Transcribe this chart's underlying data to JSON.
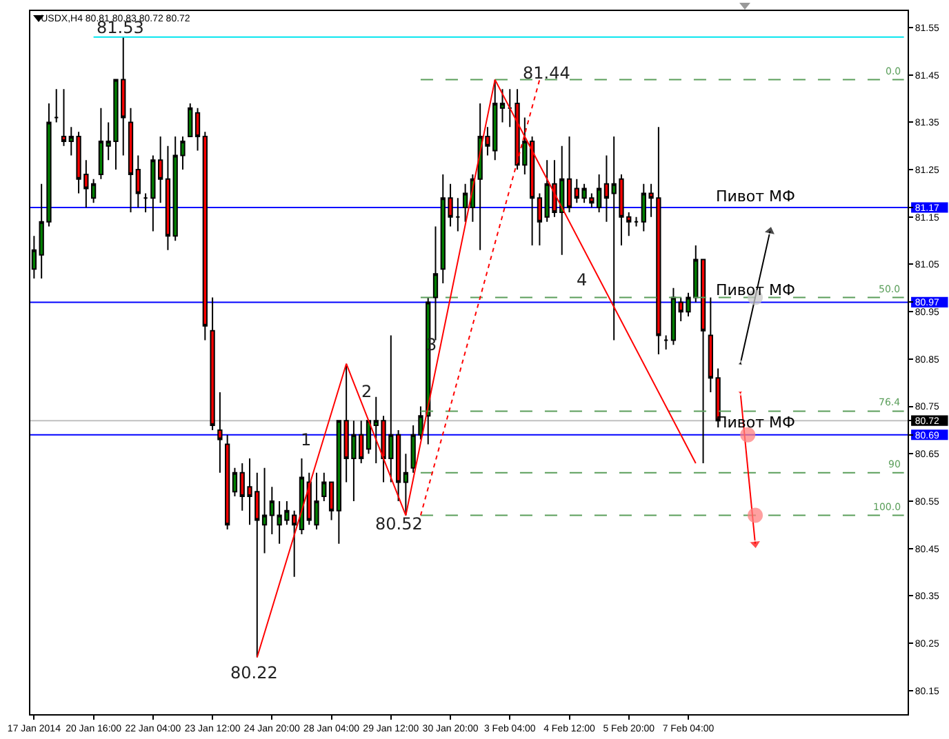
{
  "chart_data": {
    "type": "candlestick",
    "title": "USDX,H4 80.81 80.83 80.72 80.72",
    "categories": [
      "17 Jan 2014",
      null,
      null,
      null,
      null,
      null,
      null,
      null,
      "20 Jan 16:00",
      null,
      null,
      null,
      null,
      null,
      null,
      null,
      "22 Jan 04:00",
      null,
      null,
      null,
      null,
      null,
      null,
      null,
      "23 Jan 12:00",
      null,
      null,
      null,
      null,
      null,
      null,
      null,
      "24 Jan 20:00",
      null,
      null,
      null,
      null,
      null,
      null,
      null,
      "28 Jan 04:00",
      null,
      null,
      null,
      null,
      null,
      null,
      null,
      "29 Jan 12:00",
      null,
      null,
      null,
      null,
      null,
      null,
      null,
      "30 Jan 20:00",
      null,
      null,
      null,
      null,
      null,
      null,
      null,
      "3 Feb 04:00",
      null,
      null,
      null,
      null,
      null,
      null,
      null,
      "4 Feb 12:00",
      null,
      null,
      null,
      null,
      null,
      null,
      null,
      "5 Feb 20:00",
      null,
      null,
      null,
      null,
      null,
      null,
      null,
      "7 Feb 04:00",
      null,
      null,
      null,
      null,
      null,
      null,
      null,
      null,
      null,
      null,
      null,
      null,
      null,
      null,
      null,
      null,
      null,
      null,
      null,
      null,
      null,
      null,
      null,
      null,
      null,
      null,
      null,
      null,
      null
    ],
    "ohlc": [
      [
        81.04,
        81.11,
        81.02,
        81.08
      ],
      [
        81.07,
        81.22,
        81.02,
        81.14
      ],
      [
        81.14,
        81.39,
        81.13,
        81.35
      ],
      [
        81.36,
        81.42,
        81.35,
        81.36
      ],
      [
        81.32,
        81.42,
        81.3,
        81.31
      ],
      [
        81.31,
        81.34,
        81.28,
        81.32
      ],
      [
        81.32,
        81.33,
        81.2,
        81.23
      ],
      [
        81.24,
        81.27,
        81.17,
        81.21
      ],
      [
        81.19,
        81.23,
        81.18,
        81.22
      ],
      [
        81.24,
        81.38,
        81.23,
        81.31
      ],
      [
        81.3,
        81.35,
        81.27,
        81.31
      ],
      [
        81.31,
        81.44,
        81.25,
        81.44
      ],
      [
        81.44,
        81.53,
        81.28,
        81.36
      ],
      [
        81.35,
        81.38,
        81.16,
        81.24
      ],
      [
        81.25,
        81.28,
        81.17,
        81.2
      ],
      [
        81.19,
        81.2,
        81.16,
        81.19
      ],
      [
        81.19,
        81.28,
        81.12,
        81.27
      ],
      [
        81.27,
        81.32,
        81.18,
        81.23
      ],
      [
        81.23,
        81.3,
        81.08,
        81.11
      ],
      [
        81.11,
        81.32,
        81.1,
        81.28
      ],
      [
        81.28,
        81.32,
        81.25,
        81.31
      ],
      [
        81.32,
        81.39,
        81.32,
        81.38
      ],
      [
        81.37,
        81.38,
        81.29,
        81.32
      ],
      [
        81.32,
        81.33,
        80.89,
        80.92
      ],
      [
        80.91,
        80.98,
        80.7,
        80.71
      ],
      [
        80.7,
        80.78,
        80.61,
        80.68
      ],
      [
        80.67,
        80.69,
        80.49,
        80.5
      ],
      [
        80.57,
        80.62,
        80.56,
        80.61
      ],
      [
        80.61,
        80.63,
        80.53,
        80.56
      ],
      [
        80.58,
        80.64,
        80.5,
        80.56
      ],
      [
        80.57,
        80.61,
        80.22,
        80.51
      ],
      [
        80.5,
        80.62,
        80.44,
        80.52
      ],
      [
        80.52,
        80.58,
        80.48,
        80.55
      ],
      [
        80.5,
        80.55,
        80.46,
        80.52
      ],
      [
        80.51,
        80.55,
        80.5,
        80.53
      ],
      [
        80.52,
        80.53,
        80.39,
        80.5
      ],
      [
        80.49,
        80.64,
        80.48,
        80.6
      ],
      [
        80.59,
        80.61,
        80.5,
        80.51
      ],
      [
        80.5,
        80.61,
        80.49,
        80.55
      ],
      [
        80.56,
        80.61,
        80.55,
        80.59
      ],
      [
        80.59,
        80.59,
        80.51,
        80.53
      ],
      [
        80.53,
        80.72,
        80.46,
        80.72
      ],
      [
        80.72,
        80.84,
        80.59,
        80.64
      ],
      [
        80.64,
        80.72,
        80.55,
        80.69
      ],
      [
        80.69,
        80.72,
        80.63,
        80.64
      ],
      [
        80.66,
        80.72,
        80.65,
        80.72
      ],
      [
        80.71,
        80.77,
        80.63,
        80.72
      ],
      [
        80.72,
        80.73,
        80.59,
        80.64
      ],
      [
        80.64,
        80.9,
        80.59,
        80.69
      ],
      [
        80.69,
        80.7,
        80.55,
        80.59
      ],
      [
        80.59,
        80.65,
        80.52,
        80.61
      ],
      [
        80.62,
        80.71,
        80.61,
        80.69
      ],
      [
        80.69,
        80.75,
        80.68,
        80.73
      ],
      [
        80.73,
        80.98,
        80.67,
        80.97
      ],
      [
        80.98,
        81.13,
        80.89,
        81.03
      ],
      [
        81.04,
        81.24,
        81.01,
        81.19
      ],
      [
        81.19,
        81.22,
        81.13,
        81.15
      ],
      [
        81.15,
        81.19,
        81.12,
        81.15
      ],
      [
        81.17,
        81.22,
        81.14,
        81.2
      ],
      [
        81.17,
        81.24,
        81.14,
        81.23
      ],
      [
        81.23,
        81.39,
        81.08,
        81.32
      ],
      [
        81.32,
        81.34,
        81.28,
        81.3
      ],
      [
        81.29,
        81.44,
        81.27,
        81.39
      ],
      [
        81.38,
        81.42,
        81.35,
        81.39
      ],
      [
        81.38,
        81.42,
        81.34,
        81.38
      ],
      [
        81.39,
        81.42,
        81.25,
        81.26
      ],
      [
        81.26,
        81.36,
        81.24,
        81.31
      ],
      [
        81.31,
        81.32,
        81.09,
        81.19
      ],
      [
        81.19,
        81.2,
        81.09,
        81.14
      ],
      [
        81.15,
        81.27,
        81.14,
        81.22
      ],
      [
        81.22,
        81.27,
        81.15,
        81.16
      ],
      [
        81.16,
        81.3,
        81.07,
        81.23
      ],
      [
        81.23,
        81.32,
        81.16,
        81.17
      ],
      [
        81.21,
        81.23,
        81.18,
        81.19
      ],
      [
        81.19,
        81.22,
        81.18,
        81.21
      ],
      [
        81.19,
        81.2,
        81.17,
        81.18
      ],
      [
        81.17,
        81.24,
        81.16,
        81.21
      ],
      [
        81.22,
        81.28,
        81.14,
        81.19
      ],
      [
        81.2,
        81.32,
        80.89,
        81.22
      ],
      [
        81.23,
        81.24,
        81.09,
        81.15
      ],
      [
        81.15,
        81.16,
        81.11,
        81.14
      ],
      [
        81.14,
        81.15,
        81.13,
        81.14
      ],
      [
        81.14,
        81.22,
        81.12,
        81.2
      ],
      [
        81.2,
        81.22,
        81.15,
        81.19
      ],
      [
        81.19,
        81.34,
        80.86,
        80.9
      ],
      [
        80.89,
        80.9,
        80.87,
        80.89
      ],
      [
        80.89,
        81.0,
        80.88,
        80.98
      ],
      [
        80.97,
        80.98,
        80.93,
        80.95
      ],
      [
        80.95,
        80.99,
        80.94,
        80.98
      ],
      [
        80.98,
        81.09,
        80.97,
        81.06
      ],
      [
        81.06,
        81.06,
        80.63,
        80.91
      ],
      [
        80.9,
        80.98,
        80.78,
        80.81
      ],
      [
        80.81,
        80.83,
        80.72,
        80.72
      ],
      null,
      null,
      null,
      null,
      null,
      null,
      null,
      null,
      null,
      null,
      null,
      null,
      null,
      null,
      null,
      null,
      null,
      null,
      null,
      null,
      null,
      null,
      null,
      null,
      null
    ],
    "colors": [
      "#008000",
      "#008000",
      "#008000",
      "#000000",
      "#ff0000",
      "#008000",
      "#ff0000",
      "#ff0000",
      "#008000",
      "#008000",
      "#008000",
      "#008000",
      "#ff0000",
      "#ff0000",
      "#ff0000",
      "#000000",
      "#008000",
      "#ff0000",
      "#ff0000",
      "#008000",
      "#008000",
      "#008000",
      "#ff0000",
      "#ff0000",
      "#ff0000",
      "#ff0000",
      "#ff0000",
      "#008000",
      "#ff0000",
      "#ff0000",
      "#ff0000",
      "#008000",
      "#008000",
      "#008000",
      "#008000",
      "#ff0000",
      "#008000",
      "#ff0000",
      "#008000",
      "#008000",
      "#ff0000",
      "#008000",
      "#ff0000",
      "#008000",
      "#ff0000",
      "#008000",
      "#008000",
      "#ff0000",
      "#008000",
      "#ff0000",
      "#008000",
      "#008000",
      "#008000",
      "#008000",
      "#008000",
      "#008000",
      "#ff0000",
      "#000000",
      "#008000",
      "#008000",
      "#008000",
      "#ff0000",
      "#008000",
      "#008000",
      "#000000",
      "#ff0000",
      "#008000",
      "#ff0000",
      "#ff0000",
      "#008000",
      "#ff0000",
      "#008000",
      "#ff0000",
      "#ff0000",
      "#008000",
      "#ff0000",
      "#008000",
      "#ff0000",
      "#008000",
      "#ff0000",
      "#ff0000",
      "#000000",
      "#008000",
      "#ff0000",
      "#ff0000",
      "#000000",
      "#008000",
      "#ff0000",
      "#008000",
      "#008000",
      "#ff0000",
      "#ff0000",
      "#ff0000",
      null,
      null,
      null,
      null,
      null,
      null,
      null,
      null,
      null,
      null,
      null,
      null,
      null,
      null,
      null,
      null,
      null,
      null,
      null,
      null,
      null,
      null,
      null,
      null,
      null
    ],
    "series": [
      {
        "type": "line",
        "color": "#00e5ee",
        "line_style": "solid",
        "values": [
          null,
          null,
          null,
          null,
          null,
          null,
          null,
          null,
          81.53,
          null,
          null,
          null,
          null,
          null,
          null,
          null,
          null,
          null,
          null,
          null,
          null,
          null,
          null,
          null,
          null,
          null,
          null,
          null,
          null,
          null,
          null,
          null,
          null,
          null,
          null,
          null,
          null,
          null,
          null,
          null,
          null,
          null,
          null,
          null,
          null,
          null,
          null,
          null,
          null,
          null,
          null,
          null,
          null,
          null,
          null,
          null,
          null,
          null,
          null,
          null,
          null,
          null,
          null,
          null,
          null,
          null,
          null,
          null,
          null,
          null,
          null,
          null,
          null,
          null,
          null,
          null,
          null,
          null,
          null,
          null,
          null,
          null,
          null,
          null,
          null,
          null,
          null,
          null,
          null,
          null,
          null,
          null,
          null,
          null,
          null,
          null,
          null,
          null,
          null,
          null,
          null,
          null,
          null,
          null,
          null,
          null,
          null,
          null,
          null,
          null,
          null,
          null,
          null,
          null,
          null,
          null,
          null,
          81.53
        ]
      },
      {
        "type": "line",
        "name": "0.0",
        "color": "#5a9e5a",
        "line_style": "dashed",
        "values": [
          null,
          null,
          null,
          null,
          null,
          null,
          null,
          null,
          null,
          null,
          null,
          null,
          null,
          null,
          null,
          null,
          null,
          null,
          null,
          null,
          null,
          null,
          null,
          null,
          null,
          null,
          null,
          null,
          null,
          null,
          null,
          null,
          null,
          null,
          null,
          null,
          null,
          null,
          null,
          null,
          null,
          null,
          null,
          null,
          null,
          null,
          null,
          null,
          null,
          null,
          null,
          null,
          81.44,
          null,
          null,
          null,
          null,
          null,
          null,
          null,
          null,
          null,
          null,
          null,
          null,
          null,
          null,
          null,
          null,
          null,
          null,
          null,
          null,
          null,
          null,
          null,
          null,
          null,
          null,
          null,
          null,
          null,
          null,
          null,
          null,
          null,
          null,
          null,
          null,
          null,
          null,
          null,
          null,
          null,
          null,
          null,
          null,
          null,
          null,
          null,
          null,
          null,
          null,
          null,
          null,
          null,
          null,
          null,
          null,
          null,
          null,
          null,
          null,
          null,
          null,
          null,
          null,
          81.44
        ]
      },
      {
        "type": "line",
        "name": "50.0",
        "color": "#5a9e5a",
        "line_style": "dashed",
        "values": [
          null,
          null,
          null,
          null,
          null,
          null,
          null,
          null,
          null,
          null,
          null,
          null,
          null,
          null,
          null,
          null,
          null,
          null,
          null,
          null,
          null,
          null,
          null,
          null,
          null,
          null,
          null,
          null,
          null,
          null,
          null,
          null,
          null,
          null,
          null,
          null,
          null,
          null,
          null,
          null,
          null,
          null,
          null,
          null,
          null,
          null,
          null,
          null,
          null,
          null,
          null,
          null,
          80.98,
          null,
          null,
          null,
          null,
          null,
          null,
          null,
          null,
          null,
          null,
          null,
          null,
          null,
          null,
          null,
          null,
          null,
          null,
          null,
          null,
          null,
          null,
          null,
          null,
          null,
          null,
          null,
          null,
          null,
          null,
          null,
          null,
          null,
          null,
          null,
          null,
          null,
          null,
          null,
          null,
          null,
          null,
          null,
          null,
          null,
          null,
          null,
          null,
          null,
          null,
          null,
          null,
          null,
          null,
          null,
          null,
          null,
          null,
          null,
          null,
          null,
          null,
          null,
          null,
          80.98
        ]
      },
      {
        "type": "line",
        "name": "76.4",
        "color": "#5a9e5a",
        "line_style": "dashed",
        "values": [
          null,
          null,
          null,
          null,
          null,
          null,
          null,
          null,
          null,
          null,
          null,
          null,
          null,
          null,
          null,
          null,
          null,
          null,
          null,
          null,
          null,
          null,
          null,
          null,
          null,
          null,
          null,
          null,
          null,
          null,
          null,
          null,
          null,
          null,
          null,
          null,
          null,
          null,
          null,
          null,
          null,
          null,
          null,
          null,
          null,
          null,
          null,
          null,
          null,
          null,
          null,
          null,
          80.74,
          null,
          null,
          null,
          null,
          null,
          null,
          null,
          null,
          null,
          null,
          null,
          null,
          null,
          null,
          null,
          null,
          null,
          null,
          null,
          null,
          null,
          null,
          null,
          null,
          null,
          null,
          null,
          null,
          null,
          null,
          null,
          null,
          null,
          null,
          null,
          null,
          null,
          null,
          null,
          null,
          null,
          null,
          null,
          null,
          null,
          null,
          null,
          null,
          null,
          null,
          null,
          null,
          null,
          null,
          null,
          null,
          null,
          null,
          null,
          null,
          null,
          null,
          null,
          null,
          80.74
        ]
      },
      {
        "type": "line",
        "name": "90",
        "color": "#5a9e5a",
        "line_style": "dashed",
        "values": [
          null,
          null,
          null,
          null,
          null,
          null,
          null,
          null,
          null,
          null,
          null,
          null,
          null,
          null,
          null,
          null,
          null,
          null,
          null,
          null,
          null,
          null,
          null,
          null,
          null,
          null,
          null,
          null,
          null,
          null,
          null,
          null,
          null,
          null,
          null,
          null,
          null,
          null,
          null,
          null,
          null,
          null,
          null,
          null,
          null,
          null,
          null,
          null,
          null,
          null,
          null,
          null,
          80.61,
          null,
          null,
          null,
          null,
          null,
          null,
          null,
          null,
          null,
          null,
          null,
          null,
          null,
          null,
          null,
          null,
          null,
          null,
          null,
          null,
          null,
          null,
          null,
          null,
          null,
          null,
          null,
          null,
          null,
          null,
          null,
          null,
          null,
          null,
          null,
          null,
          null,
          null,
          null,
          null,
          null,
          null,
          null,
          null,
          null,
          null,
          null,
          null,
          null,
          null,
          null,
          null,
          null,
          null,
          null,
          null,
          null,
          null,
          null,
          null,
          null,
          null,
          null,
          null,
          80.61
        ]
      },
      {
        "type": "line",
        "name": "100.0",
        "color": "#5a9e5a",
        "line_style": "dashed",
        "values": [
          null,
          null,
          null,
          null,
          null,
          null,
          null,
          null,
          null,
          null,
          null,
          null,
          null,
          null,
          null,
          null,
          null,
          null,
          null,
          null,
          null,
          null,
          null,
          null,
          null,
          null,
          null,
          null,
          null,
          null,
          null,
          null,
          null,
          null,
          null,
          null,
          null,
          null,
          null,
          null,
          null,
          null,
          null,
          null,
          null,
          null,
          null,
          null,
          null,
          null,
          null,
          null,
          80.52,
          null,
          null,
          null,
          null,
          null,
          null,
          null,
          null,
          null,
          null,
          null,
          null,
          null,
          null,
          null,
          null,
          null,
          null,
          null,
          null,
          null,
          null,
          null,
          null,
          null,
          null,
          null,
          null,
          null,
          null,
          null,
          null,
          null,
          null,
          null,
          null,
          null,
          null,
          null,
          null,
          null,
          null,
          null,
          null,
          null,
          null,
          null,
          null,
          null,
          null,
          null,
          null,
          null,
          null,
          null,
          null,
          null,
          null,
          null,
          null,
          null,
          null,
          null,
          null,
          80.52
        ]
      },
      {
        "type": "line",
        "color": "#ff0000",
        "line_style": "solid",
        "values": [
          null,
          null,
          null,
          null,
          null,
          null,
          null,
          null,
          null,
          null,
          null,
          null,
          null,
          null,
          null,
          null,
          null,
          null,
          null,
          null,
          null,
          null,
          null,
          null,
          null,
          null,
          null,
          null,
          null,
          null,
          80.22,
          null,
          null,
          null,
          null,
          null,
          null,
          null,
          null,
          null,
          null,
          null,
          80.84,
          null,
          null,
          null,
          null,
          null,
          null,
          null,
          80.52,
          null,
          null,
          null,
          null,
          null,
          null,
          null,
          null,
          null,
          null,
          null,
          81.44,
          null,
          null,
          null,
          null,
          null,
          null,
          null,
          null,
          null,
          null,
          null,
          null,
          null,
          null,
          null,
          null,
          null,
          null,
          null,
          null,
          null,
          null,
          null,
          null,
          null,
          null,
          80.63,
          null,
          null,
          null,
          null,
          null,
          null,
          null,
          null,
          null,
          null,
          null,
          null,
          null,
          null,
          null,
          null,
          null,
          null,
          null,
          null,
          null,
          null,
          null,
          null,
          null,
          null,
          null,
          null
        ]
      },
      {
        "type": "line",
        "color": "#ff0000",
        "line_style": "dotted",
        "values": [
          null,
          null,
          null,
          null,
          null,
          null,
          null,
          null,
          null,
          null,
          null,
          null,
          null,
          null,
          null,
          null,
          null,
          null,
          null,
          null,
          null,
          null,
          null,
          null,
          null,
          null,
          null,
          null,
          null,
          null,
          null,
          null,
          null,
          null,
          null,
          null,
          null,
          null,
          null,
          null,
          null,
          null,
          null,
          null,
          null,
          null,
          null,
          null,
          null,
          null,
          null,
          null,
          80.52,
          null,
          null,
          null,
          null,
          null,
          null,
          null,
          null,
          null,
          null,
          null,
          null,
          null,
          null,
          null,
          81.44,
          null,
          null,
          null,
          null,
          null,
          null,
          null,
          null,
          null,
          null,
          null,
          null,
          null,
          null,
          null,
          null,
          null,
          null,
          null,
          null,
          null,
          null,
          null,
          null,
          null,
          null,
          null,
          null,
          null,
          null,
          null,
          null,
          null,
          null,
          null,
          null,
          null,
          null,
          null,
          null,
          null,
          null,
          null,
          null,
          null,
          null,
          null,
          null,
          null
        ]
      },
      {
        "type": "line",
        "color": "#000000",
        "line_style": "solid",
        "marker": "triangle",
        "values": [
          null,
          null,
          null,
          null,
          null,
          null,
          null,
          null,
          null,
          null,
          null,
          null,
          null,
          null,
          null,
          null,
          null,
          null,
          null,
          null,
          null,
          null,
          null,
          null,
          null,
          null,
          null,
          null,
          null,
          null,
          null,
          null,
          null,
          null,
          null,
          null,
          null,
          null,
          null,
          null,
          null,
          null,
          null,
          null,
          null,
          null,
          null,
          null,
          null,
          null,
          null,
          null,
          null,
          null,
          null,
          null,
          null,
          null,
          null,
          null,
          null,
          null,
          null,
          null,
          null,
          null,
          null,
          null,
          null,
          null,
          null,
          null,
          null,
          null,
          null,
          null,
          null,
          null,
          null,
          null,
          null,
          null,
          null,
          null,
          null,
          null,
          null,
          null,
          null,
          null,
          null,
          null,
          null,
          null,
          null,
          80.84,
          null,
          null,
          null,
          81.12,
          null,
          null,
          null,
          null,
          null,
          null,
          null,
          null,
          null,
          null,
          null,
          null,
          null,
          null,
          null,
          null,
          null,
          null
        ]
      },
      {
        "type": "line",
        "color": "#ff0000",
        "line_style": "solid",
        "marker": "triangle",
        "values": [
          null,
          null,
          null,
          null,
          null,
          null,
          null,
          null,
          null,
          null,
          null,
          null,
          null,
          null,
          null,
          null,
          null,
          null,
          null,
          null,
          null,
          null,
          null,
          null,
          null,
          null,
          null,
          null,
          null,
          null,
          null,
          null,
          null,
          null,
          null,
          null,
          null,
          null,
          null,
          null,
          null,
          null,
          null,
          null,
          null,
          null,
          null,
          null,
          null,
          null,
          null,
          null,
          null,
          null,
          null,
          null,
          null,
          null,
          null,
          null,
          null,
          null,
          null,
          null,
          null,
          null,
          null,
          null,
          null,
          null,
          null,
          null,
          null,
          null,
          null,
          null,
          null,
          null,
          null,
          null,
          null,
          null,
          null,
          null,
          null,
          null,
          null,
          null,
          null,
          null,
          null,
          null,
          null,
          null,
          null,
          80.78,
          null,
          80.46,
          null,
          null,
          null,
          null,
          null,
          null,
          null,
          null,
          null,
          null,
          null,
          null,
          null,
          null,
          null,
          null,
          null,
          null,
          null,
          null
        ]
      },
      {
        "type": "scatter",
        "color": "#ff8080",
        "marker": "circle",
        "values": [
          null,
          null,
          null,
          null,
          null,
          null,
          null,
          null,
          null,
          null,
          null,
          null,
          null,
          null,
          null,
          null,
          null,
          null,
          null,
          null,
          null,
          null,
          null,
          null,
          null,
          null,
          null,
          null,
          null,
          null,
          null,
          null,
          null,
          null,
          null,
          null,
          null,
          null,
          null,
          null,
          null,
          null,
          null,
          null,
          null,
          null,
          null,
          null,
          null,
          null,
          null,
          null,
          null,
          null,
          null,
          null,
          null,
          null,
          null,
          null,
          null,
          null,
          null,
          null,
          null,
          null,
          null,
          null,
          null,
          null,
          null,
          null,
          null,
          null,
          null,
          null,
          null,
          null,
          null,
          null,
          null,
          null,
          null,
          null,
          null,
          null,
          null,
          null,
          null,
          null,
          null,
          null,
          null,
          null,
          null,
          null,
          80.69,
          80.52,
          null,
          null,
          null,
          null,
          null,
          null,
          null,
          null,
          null,
          null,
          null,
          null,
          null,
          null,
          null,
          null,
          null,
          null,
          null,
          null
        ]
      },
      {
        "type": "scatter",
        "color": "#c8c8c8",
        "marker": "circle",
        "values": [
          null,
          null,
          null,
          null,
          null,
          null,
          null,
          null,
          null,
          null,
          null,
          null,
          null,
          null,
          null,
          null,
          null,
          null,
          null,
          null,
          null,
          null,
          null,
          null,
          null,
          null,
          null,
          null,
          null,
          null,
          null,
          null,
          null,
          null,
          null,
          null,
          null,
          null,
          null,
          null,
          null,
          null,
          null,
          null,
          null,
          null,
          null,
          null,
          null,
          null,
          null,
          null,
          null,
          null,
          null,
          null,
          null,
          null,
          null,
          null,
          null,
          null,
          null,
          null,
          null,
          null,
          null,
          null,
          null,
          null,
          null,
          null,
          null,
          null,
          null,
          null,
          null,
          null,
          null,
          null,
          null,
          null,
          null,
          null,
          null,
          null,
          null,
          null,
          null,
          null,
          null,
          null,
          null,
          null,
          null,
          null,
          null,
          80.98,
          null,
          null,
          null,
          null,
          null,
          null,
          null,
          null,
          null,
          null,
          null,
          null,
          null,
          null,
          null,
          null,
          null,
          null,
          null,
          null
        ]
      }
    ],
    "ref_lines": [
      {
        "axis": "y",
        "value": 80.72,
        "color": "#c0c0c0",
        "line_style": "solid"
      },
      {
        "axis": "y",
        "value": 81.17,
        "color": "#0000ff",
        "line_style": "solid",
        "label": "Пивот МФ"
      },
      {
        "axis": "y",
        "value": 80.97,
        "color": "#0000ff",
        "line_style": "solid",
        "label": "Пивот МФ"
      },
      {
        "axis": "y",
        "value": 80.69,
        "color": "#0000ff",
        "line_style": "solid",
        "label": "Пивот МФ"
      }
    ],
    "annotations": [
      "81.53",
      "81.44",
      "80.52",
      "80.22",
      "1",
      "2",
      "3",
      "4"
    ],
    "ylim": [
      80.1,
      81.585
    ],
    "yticks": [
      80.15,
      80.25,
      80.35,
      80.45,
      80.55,
      80.65,
      80.69,
      80.72,
      80.75,
      80.85,
      80.95,
      80.97,
      81.05,
      81.15,
      81.17,
      81.25,
      81.35,
      81.45,
      81.55
    ],
    "grid": false
  }
}
